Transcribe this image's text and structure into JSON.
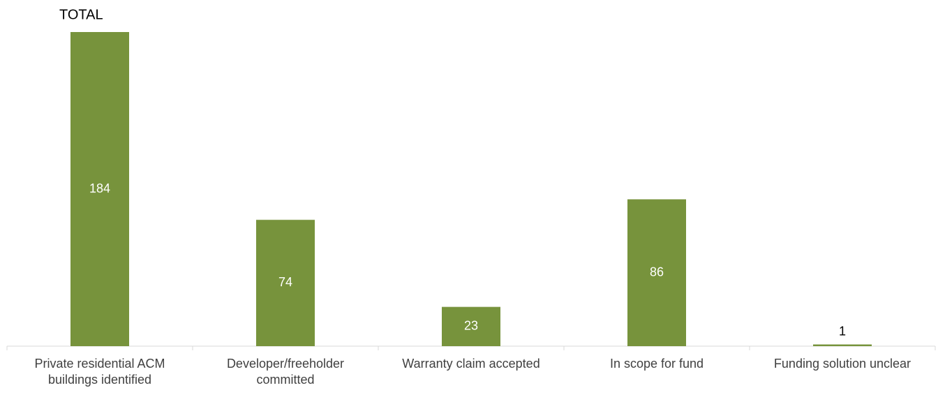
{
  "chart_data": {
    "type": "bar",
    "annotation": "TOTAL",
    "categories": [
      "Private residential ACM buildings identified",
      "Developer/freeholder committed",
      "Warranty claim accepted",
      "In scope for fund",
      "Funding solution unclear"
    ],
    "values": [
      184,
      74,
      23,
      86,
      1
    ],
    "color": "#77933c"
  }
}
